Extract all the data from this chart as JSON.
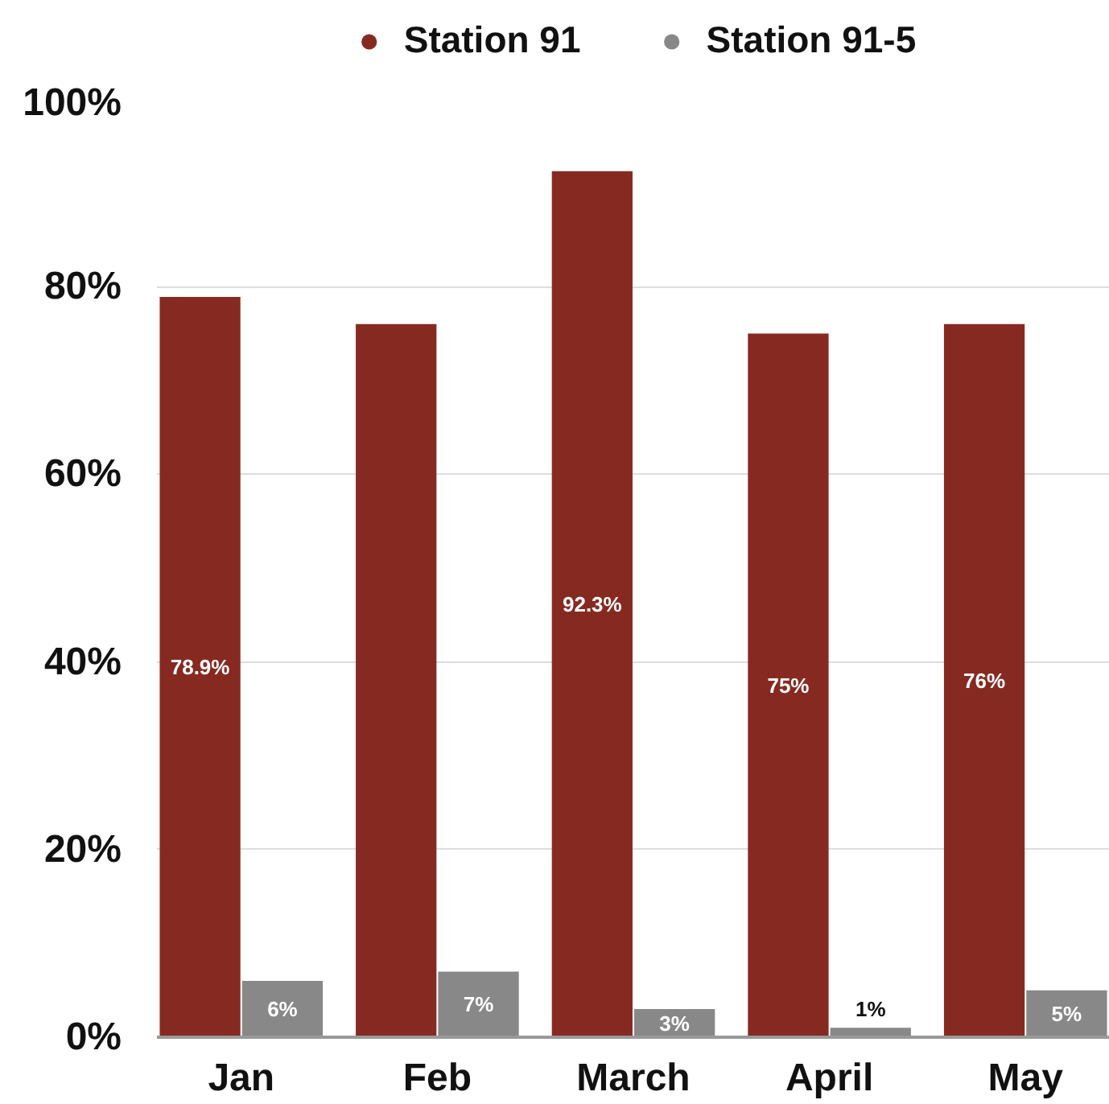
{
  "chart_data": {
    "type": "bar",
    "categories": [
      "Jan",
      "Feb",
      "March",
      "April",
      "May"
    ],
    "series": [
      {
        "name": "Station 91",
        "color": "#862a21",
        "values": [
          78.9,
          76,
          92.3,
          75,
          76
        ],
        "value_labels": [
          "78.9%",
          null,
          "92.3%",
          "75%",
          "76%"
        ]
      },
      {
        "name": "Station 91-5",
        "color": "#888888",
        "values": [
          6,
          7,
          3,
          1,
          5
        ],
        "value_labels": [
          "6%",
          "7%",
          "3%",
          "1%",
          "5%"
        ]
      }
    ],
    "ylim": [
      0,
      100
    ],
    "yticks": [
      {
        "value": 0,
        "label": "0%"
      },
      {
        "value": 20,
        "label": "20%"
      },
      {
        "value": 40,
        "label": "40%"
      },
      {
        "value": 60,
        "label": "60%"
      },
      {
        "value": 80,
        "label": "80%"
      },
      {
        "value": 100,
        "label": "100%"
      }
    ],
    "grid": "y",
    "legend": "top"
  }
}
